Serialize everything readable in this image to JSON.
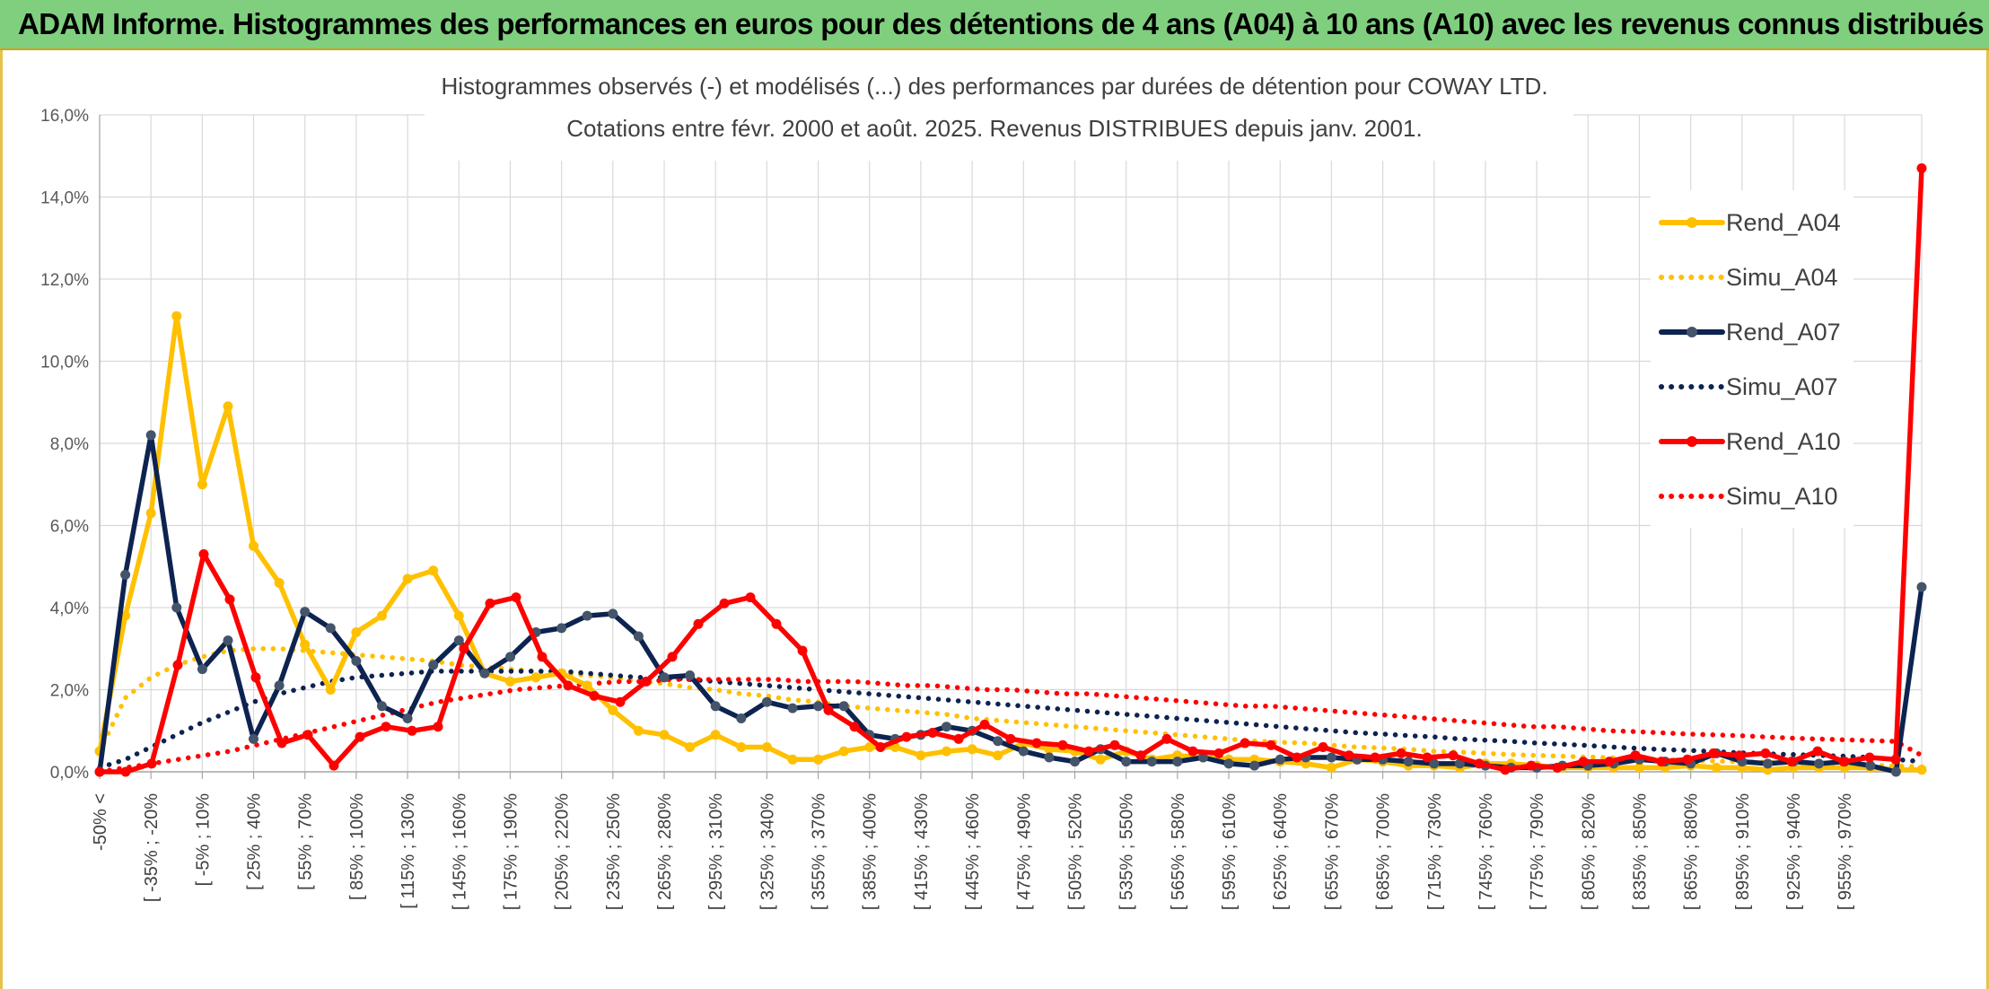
{
  "banner": {
    "title": "ADAM Informe. Histogrammes des performances en euros pour des détentions de 4 ans (A04) à 10 ans (A10) avec les revenus connus distribués"
  },
  "colors": {
    "A04": "#ffc000",
    "A07": "#0d2350",
    "A10": "#ff0000",
    "A07_marker": "#44546a",
    "grid": "#d9d9d9",
    "banner": "#7fcf7f"
  },
  "chart_data": {
    "type": "line",
    "title": "Histogrammes observés (-) et modélisés (...) des performances par durées de détention pour COWAY LTD.",
    "subtitle": "Cotations entre févr. 2000 et août. 2025. Revenus DISTRIBUES depuis janv. 2001.",
    "xlabel": "",
    "ylabel": "",
    "ylim": [
      0,
      16
    ],
    "y_ticks": [
      "0,0%",
      "2,0%",
      "4,0%",
      "6,0%",
      "8,0%",
      "10,0%",
      "12,0%",
      "14,0%",
      "16,0%"
    ],
    "grid": true,
    "legend_position": "right",
    "x_tick_labels": [
      "-50% <",
      "[ -35% ; -20%",
      "[ -5% ; 10%",
      "[ 25% ; 40%",
      "[ 55% ; 70%",
      "[ 85% ; 100%",
      "[ 115% ; 130%",
      "[ 145% ; 160%",
      "[ 175% ; 190%",
      "[ 205% ; 220%",
      "[ 235% ; 250%",
      "[ 265% ; 280%",
      "[ 295% ; 310%",
      "[ 325% ; 340%",
      "[ 355% ; 370%",
      "[ 385% ; 400%",
      "[ 415% ; 430%",
      "[ 445% ; 460%",
      "[ 475% ; 490%",
      "[ 505% ; 520%",
      "[ 535% ; 550%",
      "[ 565% ; 580%",
      "[ 595% ; 610%",
      "[ 625% ; 640%",
      "[ 655% ; 670%",
      "[ 685% ; 700%",
      "[ 715% ; 730%",
      "[ 745% ; 760%",
      "[ 775% ; 790%",
      "[ 805% ; 820%",
      "[ 835% ; 850%",
      "[ 865% ; 880%",
      "[ 895% ; 910%",
      "[ 925% ; 940%",
      "[ 955% ; 970%"
    ],
    "series": [
      {
        "name": "Rend_A04",
        "style": "solid",
        "color": "#ffc000",
        "values": [
          0.5,
          3.8,
          6.3,
          11.1,
          7.0,
          8.9,
          5.5,
          4.6,
          3.1,
          2.0,
          3.4,
          3.8,
          4.7,
          4.9,
          3.8,
          2.4,
          2.2,
          2.3,
          2.4,
          2.1,
          1.5,
          1.0,
          0.9,
          0.6,
          0.9,
          0.6,
          0.6,
          0.3,
          0.3,
          0.5,
          0.6,
          0.6,
          0.4,
          0.5,
          0.55,
          0.4,
          0.7,
          0.55,
          0.5,
          0.3,
          0.5,
          0.3,
          0.4,
          0.35,
          0.3,
          0.3,
          0.25,
          0.2,
          0.1,
          0.3,
          0.25,
          0.15,
          0.15,
          0.1,
          0.2,
          0.2,
          0.15,
          0.1,
          0.1,
          0.1,
          0.1,
          0.1,
          0.15,
          0.1,
          0.1,
          0.05,
          0.1,
          0.1,
          0.1,
          0.1,
          0.05,
          0.05
        ]
      },
      {
        "name": "Simu_A04",
        "style": "dotted",
        "color": "#ffc000",
        "values": [
          0.5,
          1.8,
          2.3,
          2.6,
          2.8,
          2.95,
          3.0,
          3.0,
          2.95,
          2.9,
          2.85,
          2.8,
          2.75,
          2.7,
          2.6,
          2.55,
          2.5,
          2.45,
          2.4,
          2.35,
          2.3,
          2.2,
          2.15,
          2.05,
          2.0,
          1.9,
          1.85,
          1.75,
          1.7,
          1.6,
          1.55,
          1.5,
          1.45,
          1.4,
          1.3,
          1.25,
          1.2,
          1.15,
          1.1,
          1.05,
          1.0,
          0.95,
          0.9,
          0.85,
          0.8,
          0.75,
          0.72,
          0.7,
          0.65,
          0.6,
          0.58,
          0.55,
          0.5,
          0.48,
          0.45,
          0.42,
          0.4,
          0.38,
          0.36,
          0.34,
          0.32,
          0.3,
          0.28,
          0.26,
          0.25,
          0.23,
          0.22,
          0.2,
          0.18,
          0.16,
          0.14,
          0.12
        ]
      },
      {
        "name": "Rend_A07",
        "style": "solid",
        "color": "#0d2350",
        "values": [
          0.0,
          4.8,
          8.2,
          4.0,
          2.5,
          3.2,
          0.8,
          2.1,
          3.9,
          3.5,
          2.7,
          1.6,
          1.3,
          2.6,
          3.2,
          2.4,
          2.8,
          3.4,
          3.5,
          3.8,
          3.85,
          3.3,
          2.3,
          2.35,
          1.6,
          1.3,
          1.7,
          1.55,
          1.6,
          1.6,
          0.9,
          0.8,
          0.9,
          1.1,
          1.0,
          0.75,
          0.5,
          0.35,
          0.25,
          0.55,
          0.25,
          0.25,
          0.25,
          0.35,
          0.2,
          0.15,
          0.3,
          0.35,
          0.35,
          0.3,
          0.3,
          0.25,
          0.2,
          0.2,
          0.15,
          0.1,
          0.1,
          0.15,
          0.15,
          0.2,
          0.3,
          0.25,
          0.2,
          0.45,
          0.25,
          0.2,
          0.25,
          0.2,
          0.25,
          0.15,
          0.0,
          4.5
        ]
      },
      {
        "name": "Simu_A07",
        "style": "dotted",
        "color": "#0d2350",
        "values": [
          0.1,
          0.3,
          0.6,
          0.9,
          1.2,
          1.45,
          1.7,
          1.9,
          2.05,
          2.2,
          2.3,
          2.35,
          2.4,
          2.45,
          2.45,
          2.45,
          2.45,
          2.45,
          2.45,
          2.4,
          2.35,
          2.3,
          2.3,
          2.25,
          2.2,
          2.15,
          2.1,
          2.05,
          2.0,
          1.95,
          1.9,
          1.85,
          1.8,
          1.75,
          1.7,
          1.65,
          1.6,
          1.55,
          1.5,
          1.45,
          1.4,
          1.35,
          1.3,
          1.25,
          1.2,
          1.15,
          1.1,
          1.05,
          1.0,
          0.95,
          0.92,
          0.88,
          0.85,
          0.8,
          0.77,
          0.74,
          0.7,
          0.67,
          0.64,
          0.6,
          0.57,
          0.54,
          0.52,
          0.49,
          0.46,
          0.44,
          0.42,
          0.4,
          0.38,
          0.35,
          0.3,
          0.25
        ]
      },
      {
        "name": "Rend_A10",
        "style": "solid",
        "color": "#ff0000",
        "values": [
          0.0,
          0.0,
          0.2,
          2.6,
          5.3,
          4.2,
          2.3,
          0.7,
          0.9,
          0.15,
          0.85,
          1.1,
          1.0,
          1.1,
          3.0,
          4.1,
          4.25,
          2.8,
          2.1,
          1.85,
          1.7,
          2.2,
          2.8,
          3.6,
          4.1,
          4.25,
          3.6,
          2.95,
          1.5,
          1.1,
          0.6,
          0.85,
          0.95,
          0.8,
          1.15,
          0.8,
          0.7,
          0.65,
          0.5,
          0.65,
          0.4,
          0.8,
          0.5,
          0.45,
          0.7,
          0.65,
          0.35,
          0.6,
          0.4,
          0.35,
          0.45,
          0.35,
          0.4,
          0.2,
          0.05,
          0.15,
          0.1,
          0.25,
          0.25,
          0.4,
          0.25,
          0.3,
          0.45,
          0.4,
          0.45,
          0.25,
          0.5,
          0.25,
          0.35,
          0.3,
          14.7
        ]
      },
      {
        "name": "Simu_A10",
        "style": "dotted",
        "color": "#ff0000",
        "values": [
          0.0,
          0.1,
          0.2,
          0.3,
          0.4,
          0.5,
          0.65,
          0.8,
          0.95,
          1.1,
          1.25,
          1.4,
          1.55,
          1.7,
          1.8,
          1.9,
          2.0,
          2.05,
          2.1,
          2.15,
          2.2,
          2.2,
          2.25,
          2.25,
          2.25,
          2.25,
          2.25,
          2.2,
          2.2,
          2.2,
          2.15,
          2.1,
          2.1,
          2.05,
          2.0,
          2.0,
          1.95,
          1.9,
          1.9,
          1.85,
          1.8,
          1.75,
          1.7,
          1.65,
          1.6,
          1.6,
          1.55,
          1.5,
          1.45,
          1.4,
          1.35,
          1.3,
          1.25,
          1.2,
          1.15,
          1.1,
          1.1,
          1.05,
          1.0,
          0.98,
          0.95,
          0.92,
          0.9,
          0.88,
          0.85,
          0.82,
          0.8,
          0.78,
          0.76,
          0.74,
          0.4
        ]
      }
    ]
  }
}
